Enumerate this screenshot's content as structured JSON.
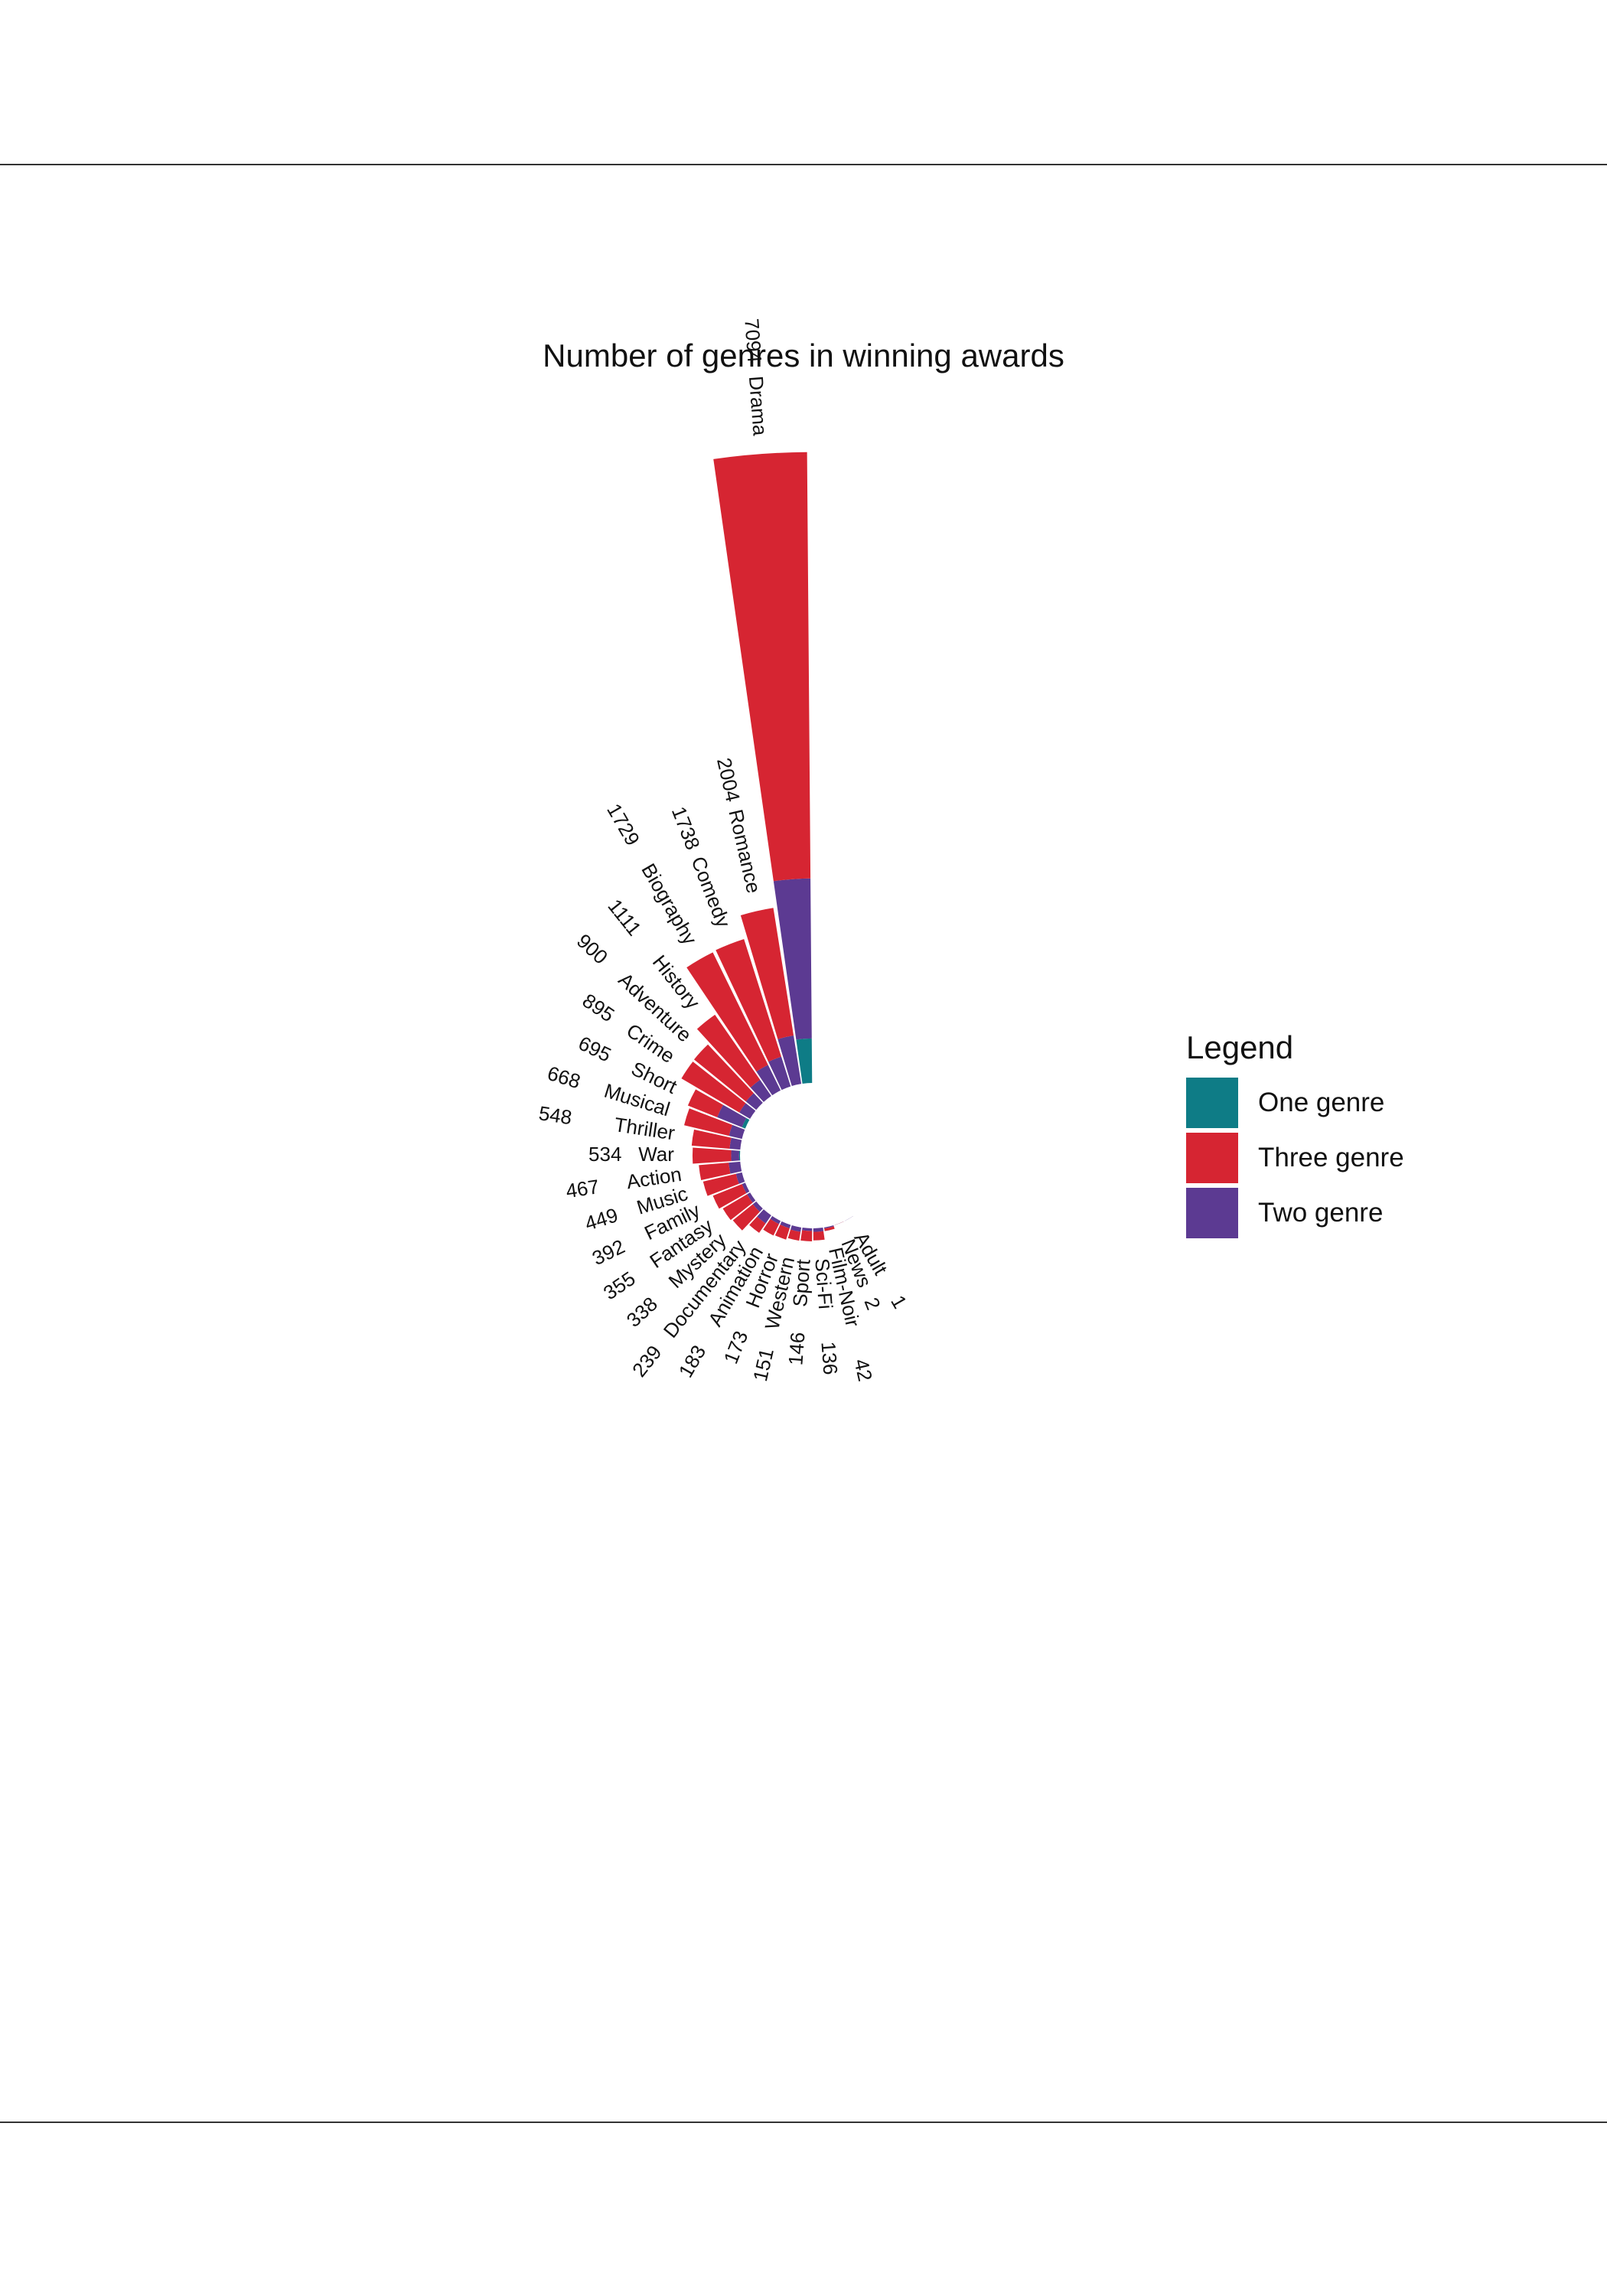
{
  "chart_data": {
    "type": "bar",
    "subtype": "circular-stacked-bar",
    "title": "Number of genres in winning awards",
    "legend": {
      "title": "Legend",
      "position": "right",
      "entries": [
        {
          "name": "One genre",
          "color": "#0e7c86"
        },
        {
          "name": "Three genre",
          "color": "#d62532"
        },
        {
          "name": "Two genre",
          "color": "#5c3a92"
        }
      ]
    },
    "categories": [
      "Drama",
      "Romance",
      "Comedy",
      "Biography",
      "History",
      "Adventure",
      "Crime",
      "Short",
      "Musical",
      "Thriller",
      "War",
      "Action",
      "Music",
      "Family",
      "Fantasy",
      "Mystery",
      "Documentary",
      "Animation",
      "Horror",
      "Western",
      "Sport",
      "Sci-Fi",
      "Film-Noir",
      "News",
      "Adult"
    ],
    "totals": [
      7094,
      2004,
      1738,
      1729,
      1111,
      900,
      895,
      695,
      668,
      548,
      534,
      467,
      449,
      392,
      355,
      338,
      239,
      183,
      173,
      151,
      146,
      136,
      42,
      2,
      1
    ],
    "series": [
      {
        "name": "One genre",
        "color": "#0e7c86",
        "values": [
          500,
          0,
          0,
          0,
          0,
          0,
          0,
          40,
          0,
          0,
          10,
          0,
          0,
          0,
          0,
          0,
          0,
          0,
          0,
          0,
          0,
          0,
          0,
          0,
          0
        ]
      },
      {
        "name": "Two genre",
        "color": "#5c3a92",
        "values": [
          1800,
          550,
          350,
          320,
          220,
          150,
          140,
          300,
          150,
          120,
          90,
          130,
          70,
          40,
          40,
          50,
          110,
          40,
          40,
          50,
          30,
          40,
          12,
          1,
          1
        ]
      },
      {
        "name": "Three genre",
        "color": "#d62532",
        "values": [
          4794,
          1454,
          1388,
          1409,
          891,
          750,
          755,
          355,
          518,
          428,
          434,
          337,
          379,
          352,
          315,
          288,
          129,
          143,
          133,
          101,
          116,
          96,
          30,
          1,
          0
        ]
      }
    ]
  }
}
